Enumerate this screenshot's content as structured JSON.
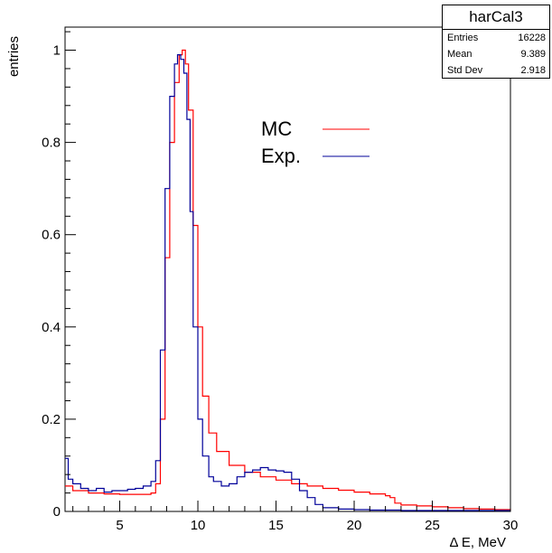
{
  "chart_data": {
    "type": "line",
    "title": "",
    "xlabel": "Δ E, MeV",
    "ylabel": "entries",
    "xlim": [
      1.5,
      30
    ],
    "ylim": [
      0,
      1.05
    ],
    "x_ticks": [
      5,
      10,
      15,
      20,
      25,
      30
    ],
    "y_ticks": [
      0,
      0.2,
      0.4,
      0.6,
      0.8,
      1
    ],
    "y_tick_labels": [
      "0",
      "0.2",
      "0.4",
      "0.6",
      "0.8",
      "1"
    ],
    "legend": {
      "position": "top-center",
      "entries": [
        "MC",
        "Exp."
      ]
    },
    "stats": {
      "title": "harCal3",
      "rows": [
        {
          "label": "Entries",
          "value": "16228"
        },
        {
          "label": "Mean",
          "value": "9.389"
        },
        {
          "label": "Std Dev",
          "value": "2.918"
        }
      ]
    },
    "series": [
      {
        "name": "MC",
        "color": "#ff0000",
        "x": [
          1.5,
          2,
          3,
          4,
          5,
          6,
          7,
          7.3,
          7.6,
          7.9,
          8.2,
          8.5,
          8.8,
          9.0,
          9.2,
          9.4,
          9.7,
          10.0,
          10.3,
          10.7,
          11.2,
          12,
          13,
          14,
          15,
          16,
          17,
          18,
          19,
          20,
          21,
          22,
          22.3,
          22.6,
          23,
          24,
          25,
          26,
          27,
          28,
          29,
          30
        ],
        "y": [
          0.055,
          0.045,
          0.04,
          0.038,
          0.037,
          0.037,
          0.04,
          0.06,
          0.2,
          0.55,
          0.8,
          0.93,
          0.99,
          1.0,
          0.97,
          0.87,
          0.62,
          0.4,
          0.25,
          0.17,
          0.13,
          0.1,
          0.085,
          0.075,
          0.068,
          0.06,
          0.055,
          0.05,
          0.046,
          0.042,
          0.038,
          0.034,
          0.03,
          0.018,
          0.014,
          0.012,
          0.01,
          0.008,
          0.006,
          0.005,
          0.004,
          0.003
        ]
      },
      {
        "name": "Exp.",
        "color": "#000099",
        "x": [
          1.5,
          1.7,
          2,
          2.5,
          3,
          3.5,
          4,
          4.5,
          5,
          5.5,
          6,
          6.5,
          7,
          7.3,
          7.6,
          7.9,
          8.2,
          8.5,
          8.7,
          8.9,
          9.1,
          9.3,
          9.5,
          9.7,
          10.0,
          10.3,
          10.7,
          11,
          11.5,
          12,
          12.5,
          13,
          13.5,
          14,
          14.5,
          15,
          15.5,
          16,
          16.5,
          17,
          17.5,
          18,
          19,
          20,
          21,
          22,
          23,
          24,
          25,
          26,
          27,
          28,
          29,
          30
        ],
        "y": [
          0.115,
          0.07,
          0.06,
          0.05,
          0.045,
          0.05,
          0.042,
          0.045,
          0.045,
          0.048,
          0.05,
          0.055,
          0.065,
          0.11,
          0.35,
          0.7,
          0.9,
          0.97,
          0.99,
          0.98,
          0.95,
          0.85,
          0.65,
          0.4,
          0.2,
          0.12,
          0.075,
          0.065,
          0.055,
          0.06,
          0.075,
          0.085,
          0.09,
          0.095,
          0.09,
          0.088,
          0.085,
          0.07,
          0.045,
          0.03,
          0.015,
          0.008,
          0.005,
          0.004,
          0.003,
          0.003,
          0.002,
          0.002,
          0.002,
          0.002,
          0.002,
          0.002,
          0.002,
          0.002
        ]
      }
    ]
  }
}
